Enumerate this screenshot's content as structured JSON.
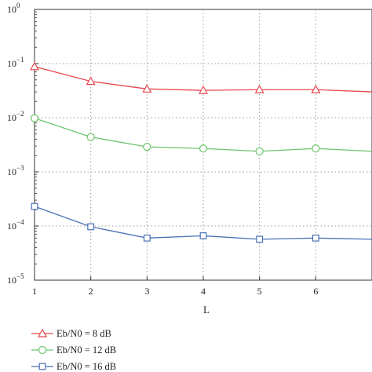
{
  "chart_data": {
    "type": "line",
    "title": "",
    "xlabel": "L",
    "ylabel": "",
    "x": [
      1,
      2,
      3,
      4,
      5,
      6,
      7
    ],
    "xlim": [
      1,
      7
    ],
    "x_tick_labels": [
      "1",
      "2",
      "3",
      "4",
      "5",
      "6"
    ],
    "ylim": [
      1e-05,
      1
    ],
    "yscale": "log",
    "y_tick_labels": [
      {
        "base": "10",
        "exp": "0"
      },
      {
        "base": "10",
        "exp": "−1"
      },
      {
        "base": "10",
        "exp": "−2"
      },
      {
        "base": "10",
        "exp": "−3"
      },
      {
        "base": "10",
        "exp": "−4"
      },
      {
        "base": "10",
        "exp": "−5"
      }
    ],
    "grid": true,
    "legend_position": "bottom-left",
    "series": [
      {
        "name": "Eb/N0 = 8 dB",
        "color": "#e8474f",
        "marker": "triangle",
        "values": [
          0.088,
          0.047,
          0.034,
          0.032,
          0.033,
          0.033,
          0.03
        ]
      },
      {
        "name": "Eb/N0 = 12 dB",
        "color": "#6cc46c",
        "marker": "circle",
        "values": [
          0.0098,
          0.0044,
          0.0029,
          0.0027,
          0.0024,
          0.0027,
          0.0024
        ]
      },
      {
        "name": "Eb/N0 = 16 dB",
        "color": "#4a6fb5",
        "marker": "square",
        "values": [
          0.00023,
          9.7e-05,
          6e-05,
          6.6e-05,
          5.7e-05,
          6e-05,
          5.7e-05
        ]
      }
    ]
  }
}
